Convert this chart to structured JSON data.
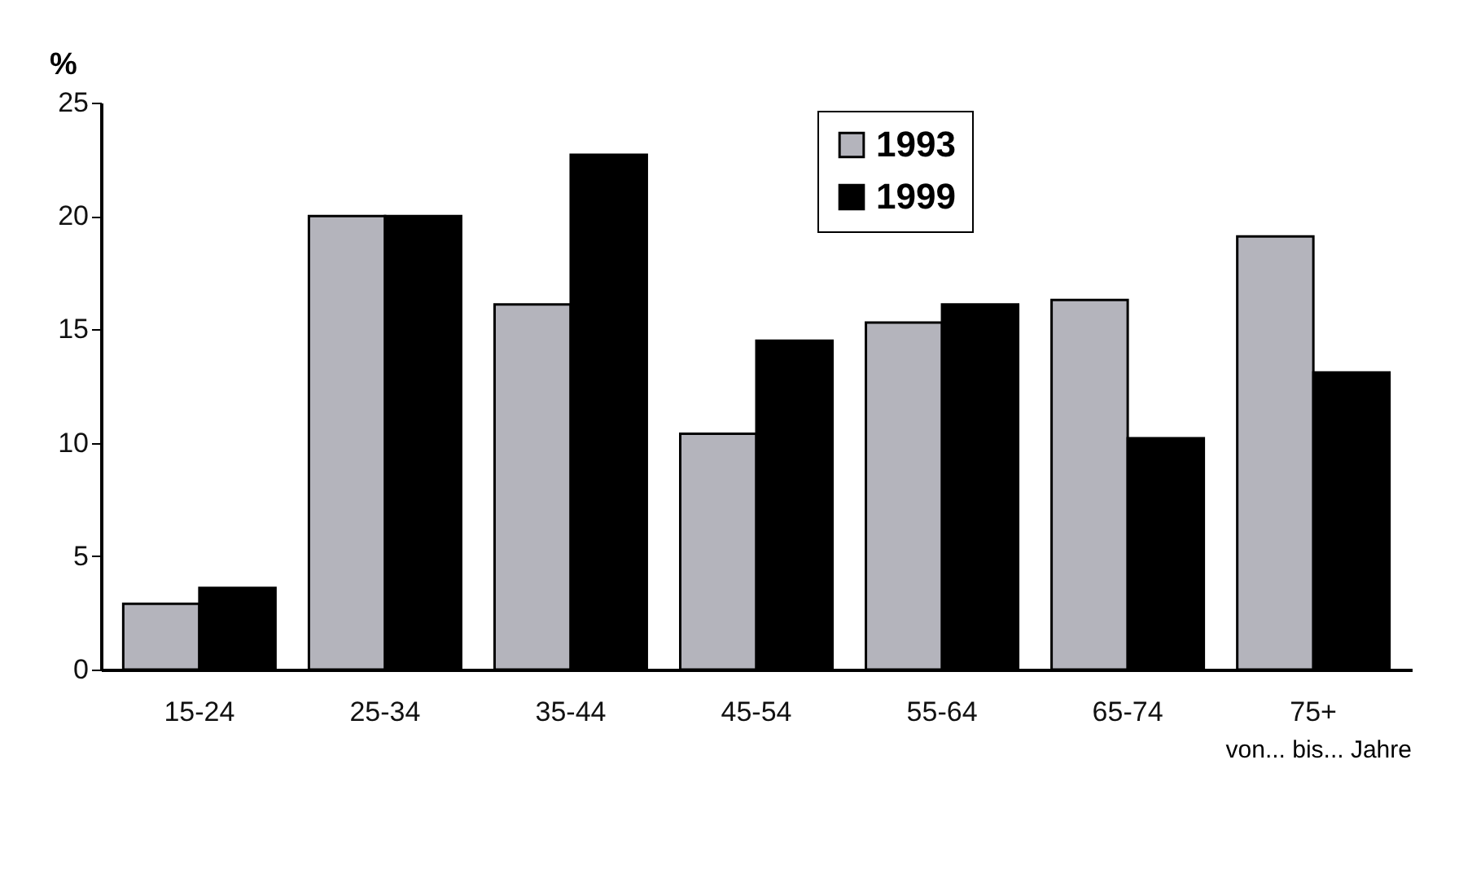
{
  "chart_data": {
    "type": "bar",
    "ylabel": "%",
    "xlabel": "von... bis... Jahre",
    "categories": [
      "15-24",
      "25-34",
      "35-44",
      "45-54",
      "55-64",
      "65-74",
      "75+"
    ],
    "series": [
      {
        "name": "1993",
        "color": "#b4b4bc",
        "values": [
          2.9,
          20,
          16.1,
          10.4,
          15.3,
          16.3,
          19.1
        ]
      },
      {
        "name": "1999",
        "color": "#000000",
        "values": [
          3.6,
          20,
          22.7,
          14.5,
          16.1,
          10.2,
          13.1
        ]
      }
    ],
    "ylim": [
      0,
      25
    ],
    "yticks": [
      0,
      5,
      10,
      15,
      20,
      25
    ],
    "grid": false,
    "legend": "top"
  }
}
